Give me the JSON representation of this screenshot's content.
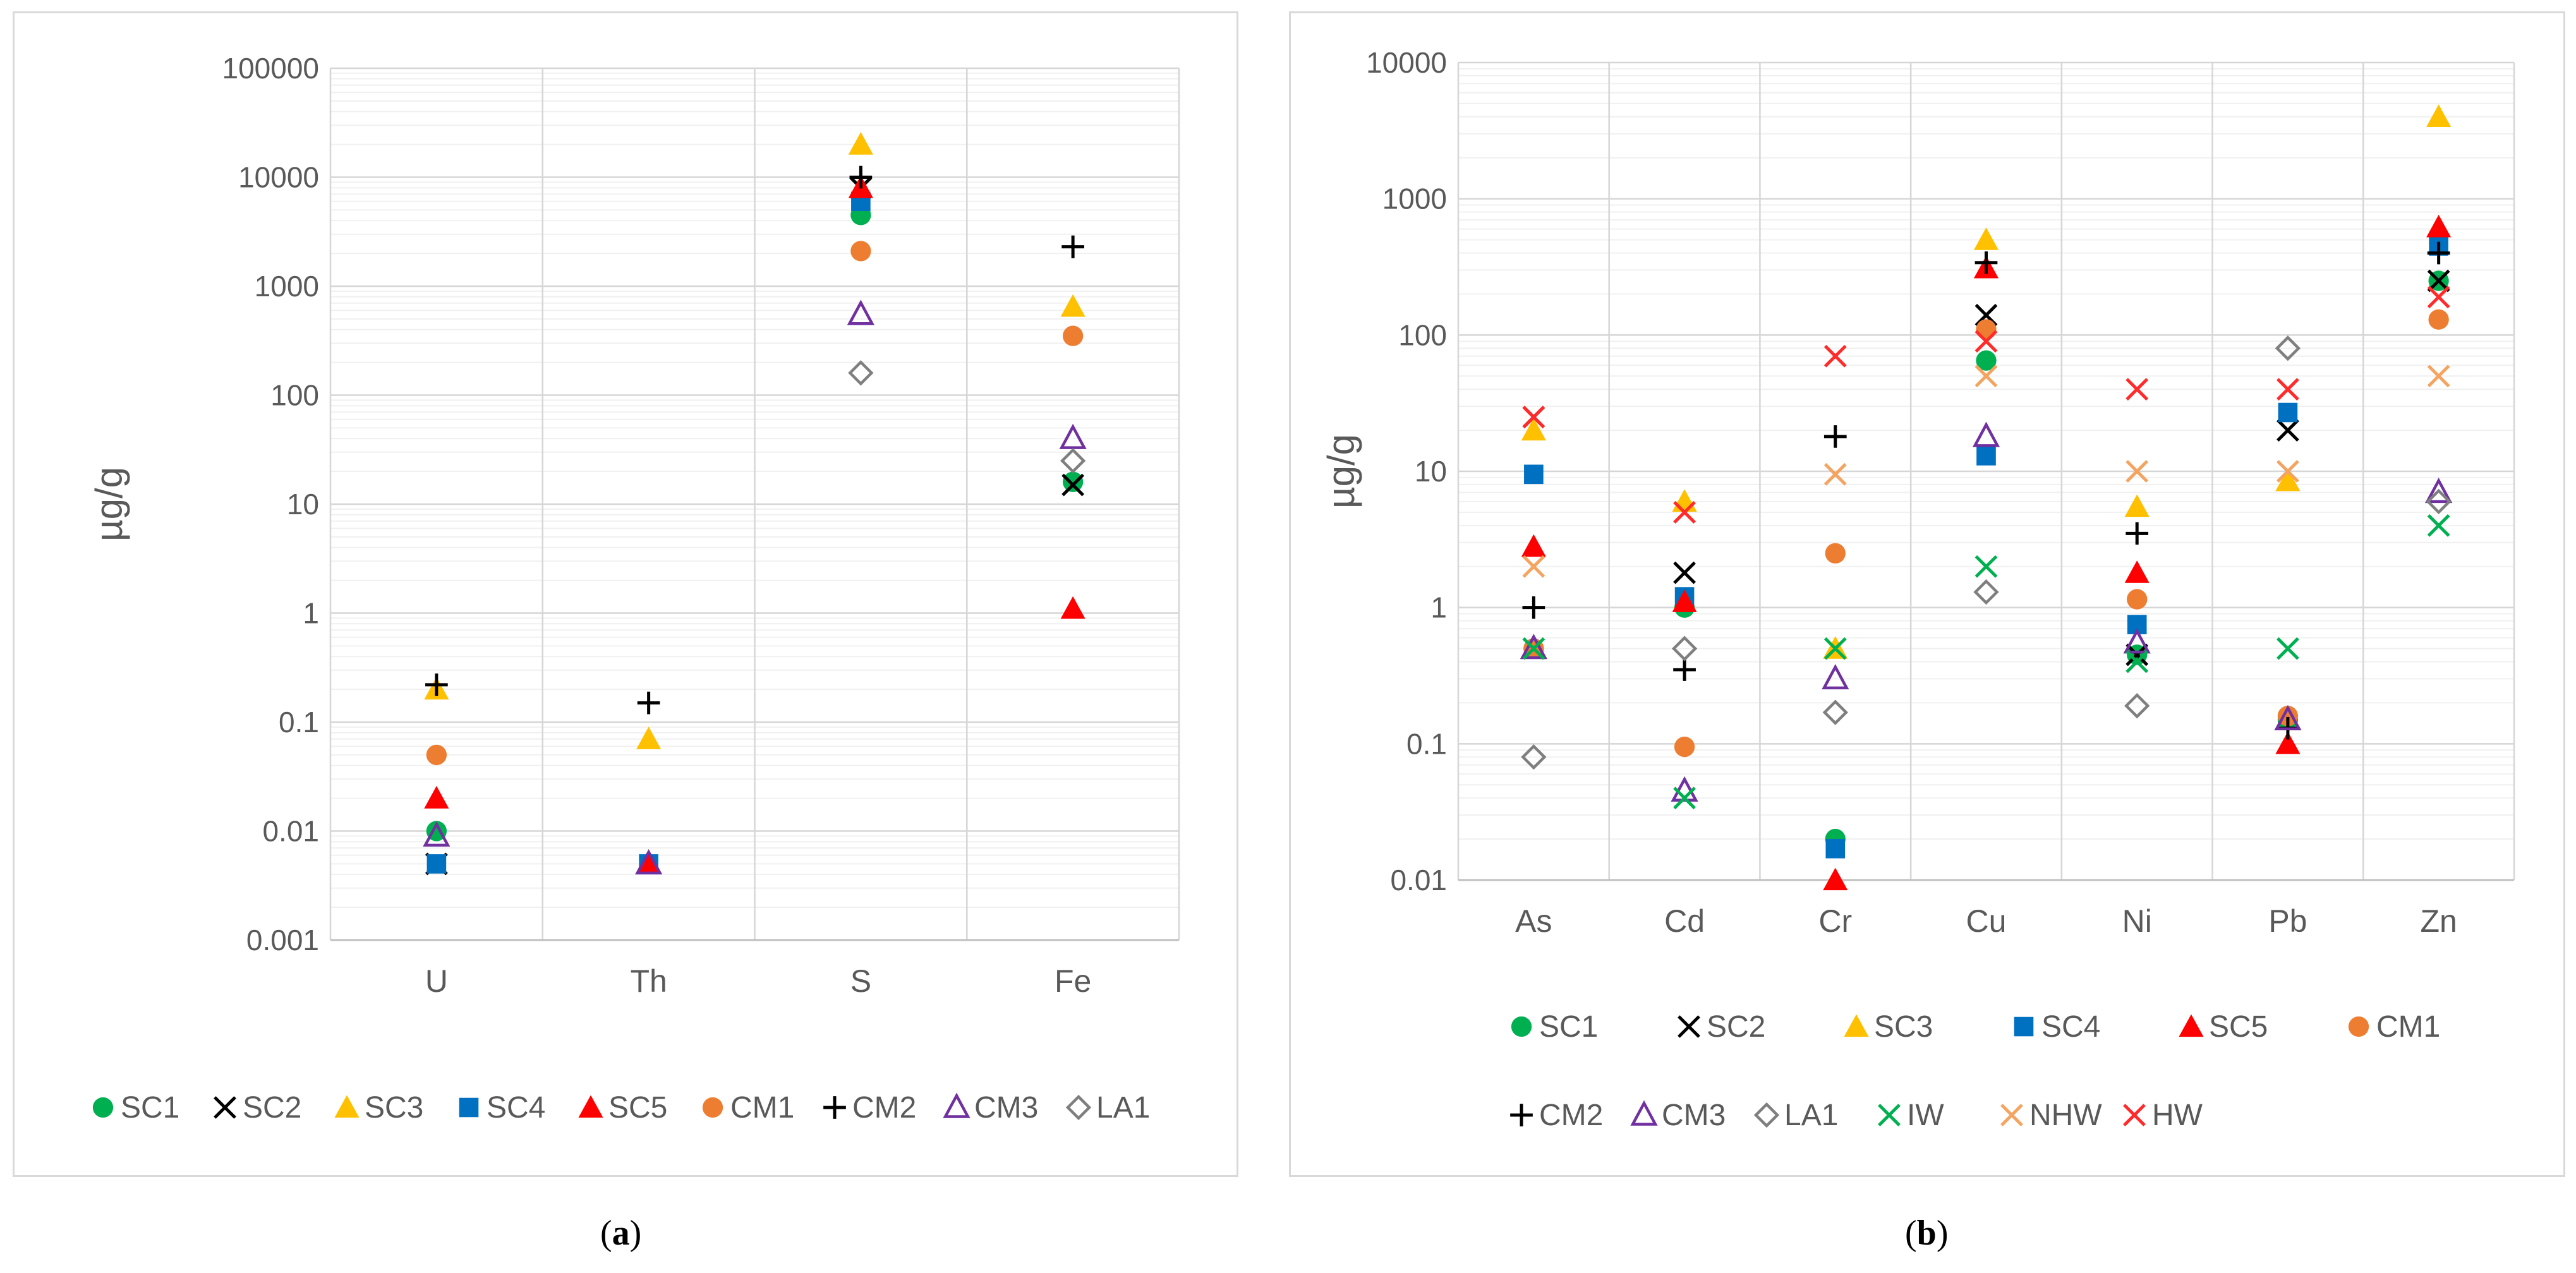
{
  "chart_data": [
    {
      "type": "scatter",
      "panel": "(a)",
      "ylabel": "µg/g",
      "yscale": "log",
      "ylim": [
        0.001,
        100000
      ],
      "ytick_labels": [
        "100000",
        "10000",
        "1000",
        "100",
        "10",
        "1",
        "0.1",
        "0.01",
        "0.001"
      ],
      "grid": true,
      "categories": [
        "U",
        "Th",
        "S",
        "Fe"
      ],
      "legend_position": "bottom",
      "series": [
        {
          "name": "SC1",
          "marker": "circle",
          "color": "#00b050",
          "values": [
            0.01,
            null,
            4500,
            16
          ]
        },
        {
          "name": "SC2",
          "marker": "x",
          "color": "#000000",
          "values": [
            0.005,
            null,
            8000,
            15
          ]
        },
        {
          "name": "SC3",
          "marker": "triangle",
          "color": "#ffc000",
          "values": [
            0.2,
            0.07,
            20000,
            650
          ]
        },
        {
          "name": "SC4",
          "marker": "square",
          "color": "#0070c0",
          "values": [
            0.005,
            0.005,
            6000,
            null
          ]
        },
        {
          "name": "SC5",
          "marker": "triangle",
          "color": "#ff0000",
          "values": [
            0.02,
            0.005,
            8000,
            1.1
          ]
        },
        {
          "name": "CM1",
          "marker": "circle",
          "color": "#ed7d31",
          "values": [
            0.05,
            null,
            2100,
            350
          ]
        },
        {
          "name": "CM2",
          "marker": "plus",
          "color": "#000000",
          "values": [
            0.22,
            0.15,
            10000,
            2300
          ]
        },
        {
          "name": "CM3",
          "marker": "triangle-open",
          "color": "#7030a0",
          "values": [
            0.009,
            0.005,
            550,
            40
          ]
        },
        {
          "name": "LA1",
          "marker": "diamond-open",
          "color": "#7f7f7f",
          "values": [
            null,
            null,
            160,
            25
          ]
        }
      ]
    },
    {
      "type": "scatter",
      "panel": "(b)",
      "ylabel": "µg/g",
      "yscale": "log",
      "ylim": [
        0.01,
        10000
      ],
      "ytick_labels": [
        "10000",
        "1000",
        "100",
        "10",
        "1",
        "0.1",
        "0.01"
      ],
      "grid": true,
      "categories": [
        "As",
        "Cd",
        "Cr",
        "Cu",
        "Ni",
        "Pb",
        "Zn"
      ],
      "legend_position": "bottom",
      "series": [
        {
          "name": "SC1",
          "marker": "circle",
          "color": "#00b050",
          "values": [
            0.5,
            1.0,
            0.02,
            65,
            0.45,
            0.15,
            250
          ]
        },
        {
          "name": "SC2",
          "marker": "x",
          "color": "#000000",
          "values": [
            25,
            1.8,
            null,
            140,
            0.45,
            20,
            250
          ]
        },
        {
          "name": "SC3",
          "marker": "triangle",
          "color": "#ffc000",
          "values": [
            20,
            6.0,
            0.5,
            500,
            5.5,
            8.5,
            4000
          ]
        },
        {
          "name": "SC4",
          "marker": "square",
          "color": "#0070c0",
          "values": [
            9.5,
            1.2,
            0.017,
            13,
            0.75,
            27,
            450
          ]
        },
        {
          "name": "SC5",
          "marker": "triangle",
          "color": "#ff0000",
          "values": [
            2.8,
            1.1,
            0.01,
            310,
            1.8,
            0.1,
            620
          ]
        },
        {
          "name": "CM1",
          "marker": "circle",
          "color": "#ed7d31",
          "values": [
            0.5,
            0.095,
            2.5,
            110,
            1.15,
            0.16,
            130
          ]
        },
        {
          "name": "CM2",
          "marker": "plus",
          "color": "#000000",
          "values": [
            1.0,
            0.35,
            18,
            340,
            3.5,
            0.13,
            400
          ]
        },
        {
          "name": "CM3",
          "marker": "triangle-open",
          "color": "#7030a0",
          "values": [
            0.5,
            0.045,
            0.3,
            18,
            0.55,
            0.15,
            7.0
          ]
        },
        {
          "name": "LA1",
          "marker": "diamond-open",
          "color": "#7f7f7f",
          "values": [
            0.08,
            0.5,
            0.17,
            1.3,
            0.19,
            80,
            6.0
          ]
        },
        {
          "name": "IW",
          "marker": "x",
          "color": "#00b050",
          "values": [
            0.5,
            0.04,
            0.5,
            2.0,
            0.4,
            0.5,
            4.0
          ]
        },
        {
          "name": "NHW",
          "marker": "x",
          "color": "#f4a460",
          "values": [
            2.0,
            null,
            9.5,
            50,
            10,
            10,
            50
          ]
        },
        {
          "name": "HW",
          "marker": "x",
          "color": "#ff2b2b",
          "values": [
            25,
            5.0,
            70,
            90,
            40,
            40,
            190
          ]
        }
      ]
    }
  ],
  "captions": {
    "a": "a",
    "b": "b"
  }
}
